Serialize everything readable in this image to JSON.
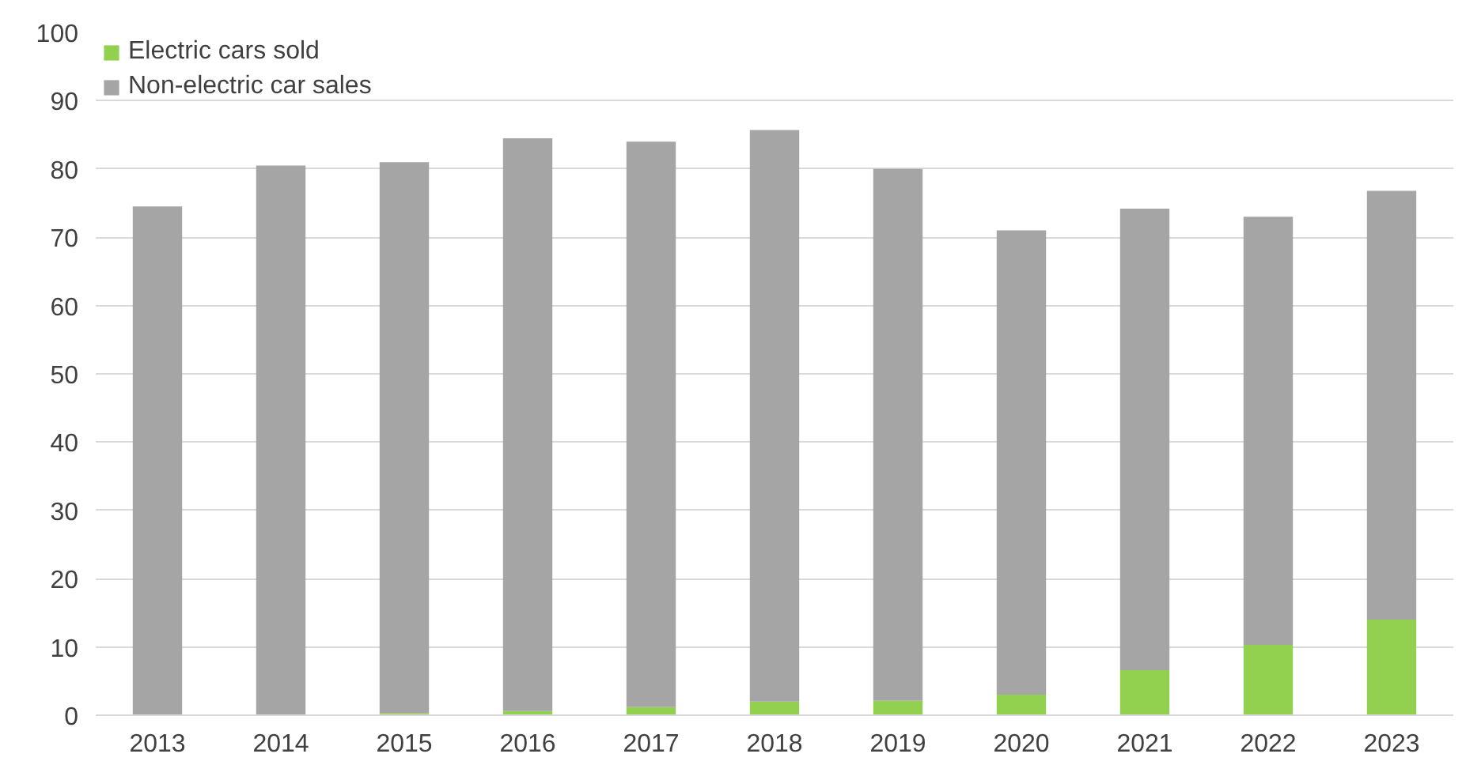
{
  "chart_data": {
    "type": "bar",
    "stacked": true,
    "categories": [
      "2013",
      "2014",
      "2015",
      "2016",
      "2017",
      "2018",
      "2019",
      "2020",
      "2021",
      "2022",
      "2023"
    ],
    "series": [
      {
        "name": "Electric cars sold",
        "color": "#92d050",
        "values": [
          0.1,
          0.1,
          0.3,
          0.6,
          1.2,
          2.0,
          2.1,
          3.0,
          6.6,
          10.3,
          14.0
        ]
      },
      {
        "name": "Non-electric car sales",
        "color": "#a5a5a5",
        "values": [
          74.4,
          80.4,
          80.7,
          83.9,
          82.8,
          83.7,
          77.9,
          68.0,
          67.6,
          62.7,
          62.8
        ]
      }
    ],
    "ylim": [
      0,
      100
    ],
    "yticks": [
      0,
      10,
      20,
      30,
      40,
      50,
      60,
      70,
      80,
      90,
      100
    ],
    "grid": "y",
    "legend": "top left"
  }
}
